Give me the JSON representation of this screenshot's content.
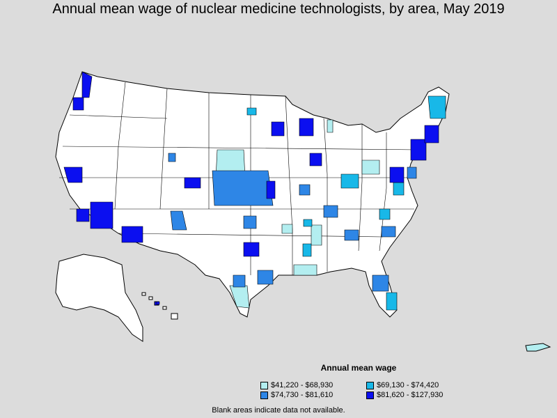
{
  "title": "Annual mean wage of nuclear medicine technologists, by area, May 2019",
  "legend": {
    "title": "Annual mean wage",
    "items": [
      {
        "label": "$41,220 - $68,930",
        "color": "#b3eef0"
      },
      {
        "label": "$69,130 - $74,420",
        "color": "#18b8e8"
      },
      {
        "label": "$74,730 - $81,610",
        "color": "#2e86e6"
      },
      {
        "label": "$81,620 - $127,930",
        "color": "#0b0ff0"
      }
    ]
  },
  "note": "Blank areas indicate data not available.",
  "colors": {
    "background": "#dcdcdc",
    "land": "#ffffff",
    "border": "#000000"
  }
}
